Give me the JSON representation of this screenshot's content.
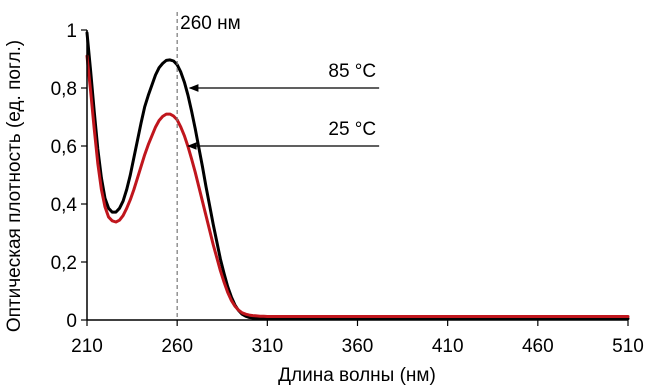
{
  "chart_data": {
    "type": "line",
    "title": "",
    "xlabel": "Длина волны (нм)",
    "ylabel": "Оптическая плотность (ед. погл.)",
    "xlim": [
      210,
      510
    ],
    "ylim": [
      0,
      1
    ],
    "x_ticks": [
      "210",
      "260",
      "310",
      "360",
      "410",
      "460",
      "510"
    ],
    "y_ticks": [
      "0",
      "0,2",
      "0,4",
      "0,6",
      "0,8",
      "1"
    ],
    "x_tick_values": [
      210,
      260,
      310,
      360,
      410,
      460,
      510
    ],
    "y_tick_values": [
      0,
      0.2,
      0.4,
      0.6,
      0.8,
      1
    ],
    "grid": false,
    "series": [
      {
        "name": "85 °C",
        "color": "#000000",
        "x": [
          210,
          212,
          214,
          216,
          218,
          220,
          222,
          224,
          226,
          228,
          230,
          232,
          234,
          236,
          238,
          240,
          242,
          244,
          246,
          248,
          250,
          252,
          254,
          256,
          258,
          260,
          262,
          264,
          266,
          268,
          270,
          272,
          274,
          276,
          278,
          280,
          282,
          284,
          286,
          288,
          290,
          292,
          294,
          296,
          298,
          300,
          302,
          304,
          306,
          308,
          310,
          320,
          340,
          360,
          380,
          400,
          420,
          440,
          460,
          480,
          500,
          510
        ],
        "y": [
          0.99,
          0.86,
          0.72,
          0.59,
          0.49,
          0.42,
          0.385,
          0.372,
          0.372,
          0.385,
          0.41,
          0.45,
          0.5,
          0.56,
          0.62,
          0.68,
          0.735,
          0.775,
          0.81,
          0.845,
          0.87,
          0.885,
          0.895,
          0.897,
          0.893,
          0.88,
          0.855,
          0.82,
          0.775,
          0.72,
          0.66,
          0.595,
          0.53,
          0.46,
          0.395,
          0.33,
          0.27,
          0.21,
          0.16,
          0.115,
          0.08,
          0.052,
          0.033,
          0.02,
          0.013,
          0.009,
          0.007,
          0.006,
          0.005,
          0.005,
          0.005,
          0.005,
          0.005,
          0.005,
          0.005,
          0.005,
          0.005,
          0.005,
          0.005,
          0.005,
          0.005,
          0.005
        ]
      },
      {
        "name": "25 °C",
        "color": "#c0161d",
        "x": [
          210,
          212,
          214,
          216,
          218,
          220,
          222,
          224,
          226,
          228,
          230,
          232,
          234,
          236,
          238,
          240,
          242,
          244,
          246,
          248,
          250,
          252,
          254,
          256,
          258,
          260,
          262,
          264,
          266,
          268,
          270,
          272,
          274,
          276,
          278,
          280,
          282,
          284,
          286,
          288,
          290,
          292,
          294,
          296,
          298,
          300,
          302,
          304,
          306,
          308,
          310,
          320,
          340,
          360,
          380,
          400,
          420,
          440,
          460,
          480,
          500,
          510
        ],
        "y": [
          0.91,
          0.79,
          0.66,
          0.54,
          0.45,
          0.39,
          0.355,
          0.342,
          0.338,
          0.344,
          0.36,
          0.385,
          0.415,
          0.45,
          0.49,
          0.53,
          0.57,
          0.605,
          0.635,
          0.665,
          0.688,
          0.702,
          0.71,
          0.71,
          0.703,
          0.69,
          0.665,
          0.635,
          0.598,
          0.555,
          0.51,
          0.46,
          0.41,
          0.36,
          0.31,
          0.26,
          0.215,
          0.17,
          0.13,
          0.095,
          0.068,
          0.048,
          0.034,
          0.025,
          0.02,
          0.017,
          0.015,
          0.014,
          0.013,
          0.013,
          0.012,
          0.012,
          0.012,
          0.012,
          0.012,
          0.012,
          0.012,
          0.012,
          0.012,
          0.012,
          0.012,
          0.012
        ]
      }
    ],
    "reference_line": {
      "x": 260,
      "label": "260 нм"
    },
    "annotations": [
      {
        "label": "85 °C",
        "target_x": 267,
        "target_y": 0.8,
        "end_x": 372
      },
      {
        "label": "25 °C",
        "target_x": 266,
        "target_y": 0.6,
        "end_x": 372
      }
    ]
  }
}
